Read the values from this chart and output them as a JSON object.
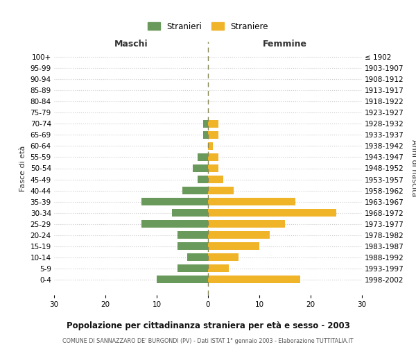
{
  "age_groups": [
    "0-4",
    "5-9",
    "10-14",
    "15-19",
    "20-24",
    "25-29",
    "30-34",
    "35-39",
    "40-44",
    "45-49",
    "50-54",
    "55-59",
    "60-64",
    "65-69",
    "70-74",
    "75-79",
    "80-84",
    "85-89",
    "90-94",
    "95-99",
    "100+"
  ],
  "birth_years": [
    "1998-2002",
    "1993-1997",
    "1988-1992",
    "1983-1987",
    "1978-1982",
    "1973-1977",
    "1968-1972",
    "1963-1967",
    "1958-1962",
    "1953-1957",
    "1948-1952",
    "1943-1947",
    "1938-1942",
    "1933-1937",
    "1928-1932",
    "1923-1927",
    "1918-1922",
    "1913-1917",
    "1908-1912",
    "1903-1907",
    "≤ 1902"
  ],
  "males": [
    10,
    6,
    4,
    6,
    6,
    13,
    7,
    13,
    5,
    2,
    3,
    2,
    0,
    1,
    1,
    0,
    0,
    0,
    0,
    0,
    0
  ],
  "females": [
    18,
    4,
    6,
    10,
    12,
    15,
    25,
    17,
    5,
    3,
    2,
    2,
    1,
    2,
    2,
    0,
    0,
    0,
    0,
    0,
    0
  ],
  "male_color": "#6a9a5b",
  "female_color": "#f0b429",
  "grid_color": "#cccccc",
  "center_line_color": "#888855",
  "title": "Popolazione per cittadinanza straniera per età e sesso - 2003",
  "subtitle": "COMUNE DI SANNAZZARO DE' BURGONDI (PV) - Dati ISTAT 1° gennaio 2003 - Elaborazione TUTTITALIA.IT",
  "xlabel_left": "Maschi",
  "xlabel_right": "Femmine",
  "ylabel_left": "Fasce di età",
  "ylabel_right": "Anni di nascita",
  "legend_males": "Stranieri",
  "legend_females": "Straniere",
  "xlim": 30,
  "background_color": "#ffffff"
}
